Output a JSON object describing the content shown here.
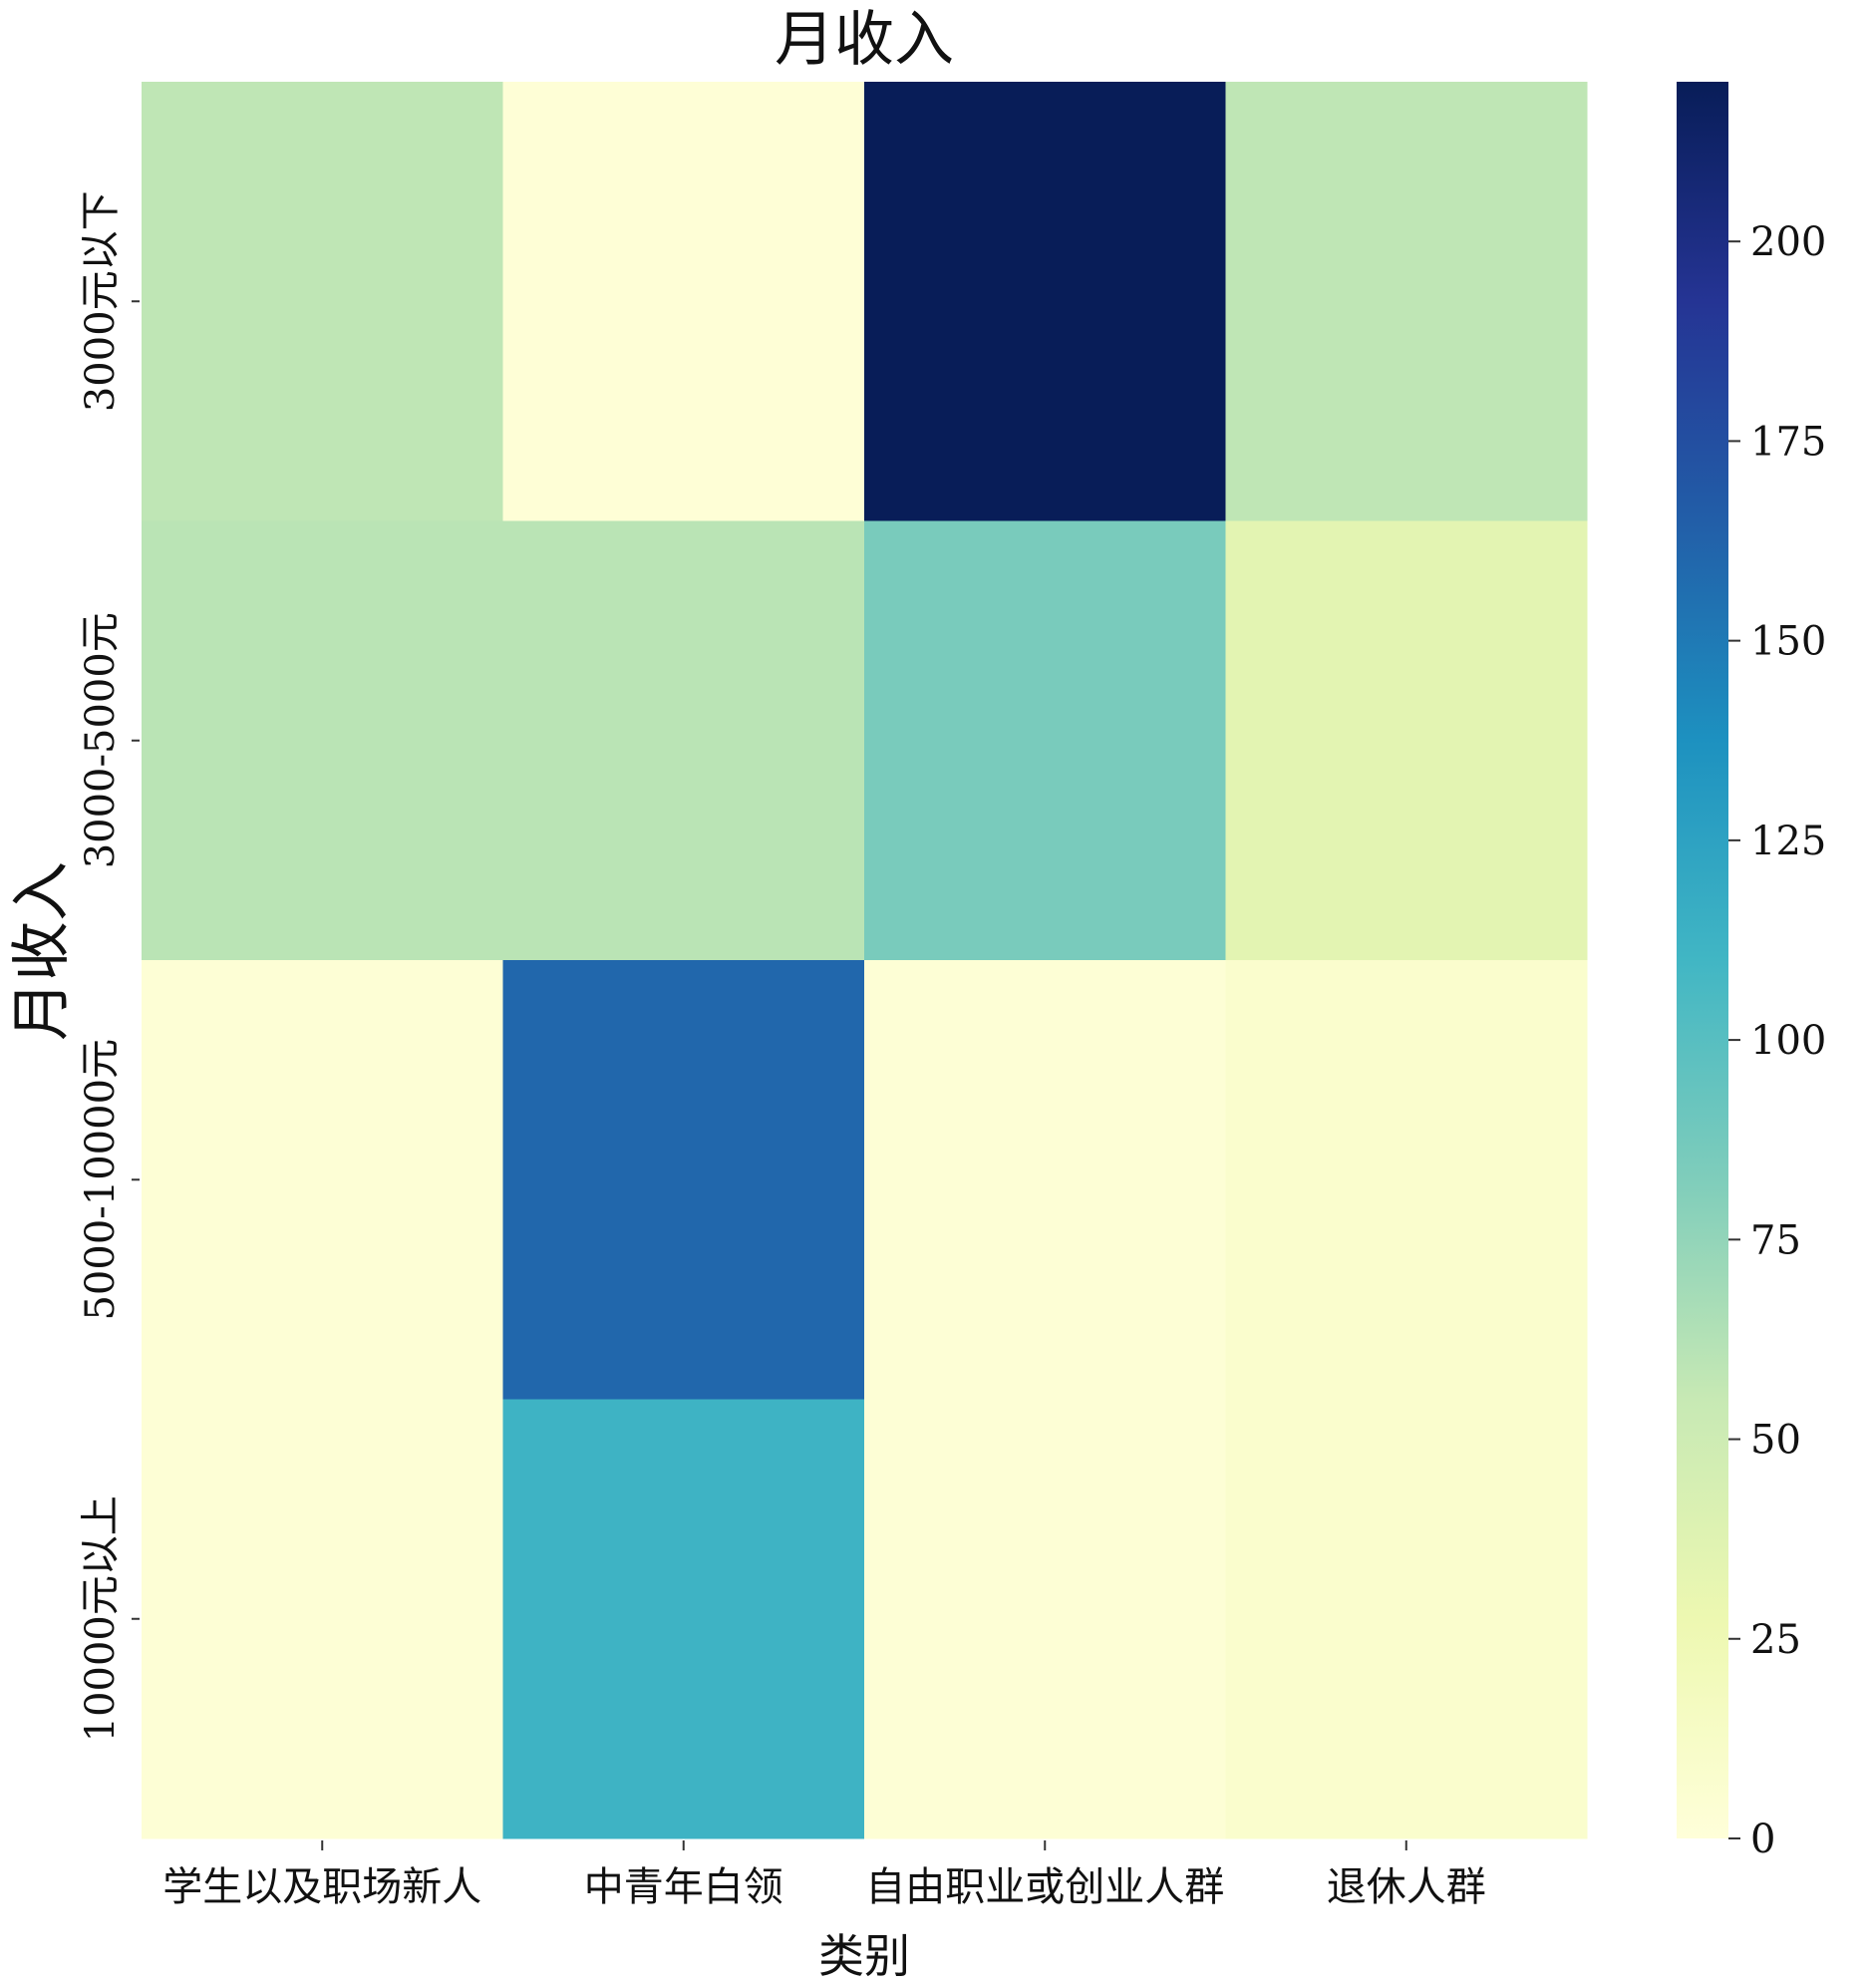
{
  "chart_data": {
    "type": "heatmap",
    "title": "月收入",
    "xlabel": "类别",
    "ylabel": "月收入",
    "x_categories": [
      "学生以及职场新人",
      "中青年白领",
      "自由职业或创业人群",
      "退休人群"
    ],
    "y_categories": [
      "3000元以下",
      "3000-5000元",
      "5000-10000元",
      "10000元以上"
    ],
    "values": [
      [
        58,
        2,
        220,
        58
      ],
      [
        60,
        60,
        85,
        35
      ],
      [
        3,
        160,
        3,
        8
      ],
      [
        3,
        112,
        3,
        8
      ]
    ],
    "colorbar": {
      "range": [
        0,
        220
      ],
      "ticks": [
        0,
        25,
        50,
        75,
        100,
        125,
        150,
        175,
        200
      ],
      "colormap": "YlGnBu"
    },
    "grid": false
  }
}
